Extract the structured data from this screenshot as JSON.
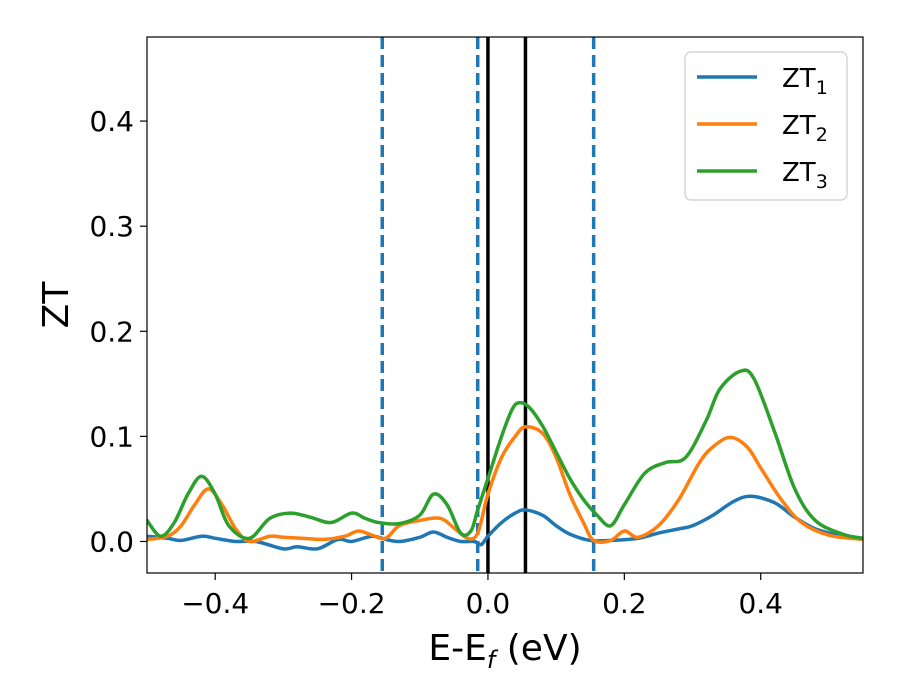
{
  "chart_data": {
    "type": "line",
    "title": "",
    "xlabel": {
      "base": "E-E",
      "sub": "f",
      "rest": " (eV)"
    },
    "ylabel": "ZT",
    "xlim": [
      -0.5,
      0.55
    ],
    "ylim": [
      -0.03,
      0.48
    ],
    "xticks": [
      -0.4,
      -0.2,
      0.0,
      0.2,
      0.4
    ],
    "xtick_labels": [
      "−0.4",
      "−0.2",
      "0.0",
      "0.2",
      "0.4"
    ],
    "yticks": [
      0.0,
      0.1,
      0.2,
      0.3,
      0.4
    ],
    "ytick_labels": [
      "0.0",
      "0.1",
      "0.2",
      "0.3",
      "0.4"
    ],
    "grid": false,
    "legend_position": "top-right",
    "vlines_solid": [
      0.0,
      0.055
    ],
    "vlines_dashed": [
      -0.155,
      -0.015,
      0.155
    ],
    "vline_colors": {
      "solid": "#000000",
      "dashed": "#1f77b4"
    },
    "series": [
      {
        "name": "ZT",
        "sub": "1",
        "color": "#1f77b4",
        "x": [
          -0.5,
          -0.47,
          -0.45,
          -0.42,
          -0.4,
          -0.37,
          -0.34,
          -0.3,
          -0.28,
          -0.25,
          -0.22,
          -0.2,
          -0.17,
          -0.15,
          -0.13,
          -0.1,
          -0.08,
          -0.06,
          -0.04,
          -0.02,
          -0.01,
          0.0,
          0.02,
          0.04,
          0.055,
          0.08,
          0.1,
          0.12,
          0.15,
          0.18,
          0.22,
          0.25,
          0.28,
          0.3,
          0.33,
          0.36,
          0.385,
          0.42,
          0.45,
          0.48,
          0.52,
          0.55
        ],
        "y": [
          0.005,
          0.003,
          0.001,
          0.005,
          0.003,
          0.0,
          0.0,
          -0.007,
          -0.005,
          -0.007,
          0.002,
          0.0,
          0.005,
          0.002,
          0.0,
          0.004,
          0.009,
          0.004,
          0.0,
          0.0,
          -0.003,
          0.005,
          0.018,
          0.027,
          0.03,
          0.025,
          0.015,
          0.007,
          0.001,
          0.001,
          0.003,
          0.008,
          0.012,
          0.015,
          0.025,
          0.038,
          0.043,
          0.037,
          0.023,
          0.012,
          0.005,
          0.002
        ]
      },
      {
        "name": "ZT",
        "sub": "2",
        "color": "#ff7f0e",
        "x": [
          -0.5,
          -0.47,
          -0.45,
          -0.43,
          -0.41,
          -0.39,
          -0.37,
          -0.35,
          -0.32,
          -0.3,
          -0.27,
          -0.24,
          -0.21,
          -0.19,
          -0.17,
          -0.15,
          -0.13,
          -0.1,
          -0.07,
          -0.05,
          -0.03,
          -0.015,
          0.0,
          0.02,
          0.04,
          0.055,
          0.08,
          0.1,
          0.12,
          0.14,
          0.155,
          0.18,
          0.2,
          0.22,
          0.25,
          0.28,
          0.31,
          0.33,
          0.355,
          0.38,
          0.4,
          0.43,
          0.46,
          0.5,
          0.55
        ],
        "y": [
          0.002,
          0.005,
          0.015,
          0.035,
          0.05,
          0.035,
          0.012,
          0.0,
          0.005,
          0.004,
          0.003,
          0.002,
          0.005,
          0.01,
          0.006,
          0.003,
          0.015,
          0.02,
          0.022,
          0.013,
          0.003,
          0.008,
          0.045,
          0.08,
          0.1,
          0.109,
          0.103,
          0.08,
          0.045,
          0.018,
          0.001,
          0.001,
          0.01,
          0.004,
          0.015,
          0.04,
          0.075,
          0.09,
          0.099,
          0.09,
          0.07,
          0.04,
          0.018,
          0.006,
          0.002
        ]
      },
      {
        "name": "ZT",
        "sub": "3",
        "color": "#2ca02c",
        "x": [
          -0.5,
          -0.48,
          -0.46,
          -0.44,
          -0.42,
          -0.4,
          -0.38,
          -0.35,
          -0.32,
          -0.29,
          -0.26,
          -0.23,
          -0.2,
          -0.18,
          -0.16,
          -0.13,
          -0.1,
          -0.08,
          -0.06,
          -0.04,
          -0.025,
          -0.015,
          0.0,
          0.02,
          0.035,
          0.045,
          0.06,
          0.08,
          0.1,
          0.12,
          0.14,
          0.16,
          0.18,
          0.2,
          0.23,
          0.26,
          0.29,
          0.32,
          0.34,
          0.37,
          0.39,
          0.42,
          0.45,
          0.48,
          0.52,
          0.55
        ],
        "y": [
          0.02,
          0.005,
          0.018,
          0.045,
          0.062,
          0.045,
          0.015,
          0.003,
          0.022,
          0.027,
          0.023,
          0.018,
          0.027,
          0.022,
          0.018,
          0.017,
          0.025,
          0.045,
          0.035,
          0.008,
          0.01,
          0.03,
          0.06,
          0.1,
          0.125,
          0.132,
          0.128,
          0.11,
          0.085,
          0.06,
          0.04,
          0.025,
          0.015,
          0.035,
          0.065,
          0.075,
          0.08,
          0.115,
          0.145,
          0.162,
          0.155,
          0.105,
          0.05,
          0.02,
          0.007,
          0.003
        ]
      }
    ]
  }
}
